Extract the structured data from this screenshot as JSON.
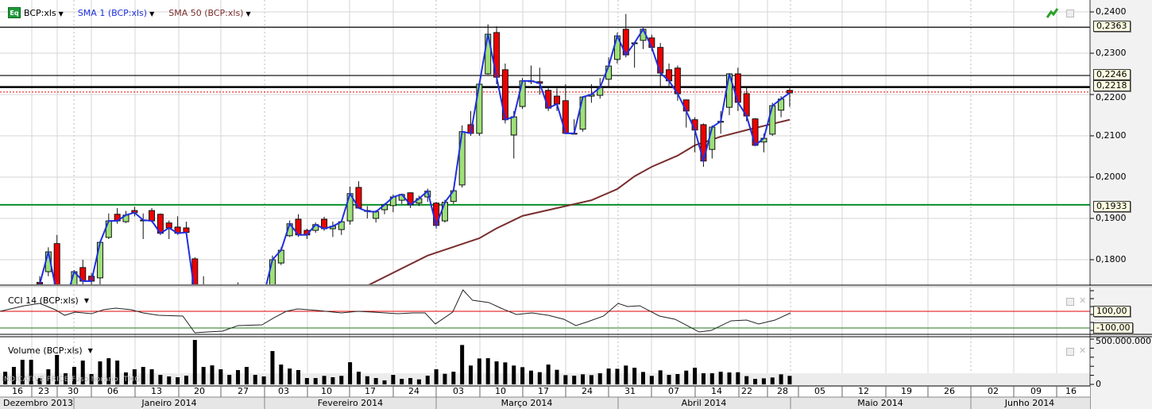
{
  "main_panel": {
    "symbol_label": "BCP:xls",
    "symbol_icon_text": "Eq",
    "sma1_label": "SMA 1 (BCP:xls)",
    "sma50_label": "SMA 50 (BCP:xls)",
    "price_ticks": [
      "0,2400",
      "0,2300",
      "0,2200",
      "0,2100",
      "0,2000",
      "0,1900",
      "0,1800"
    ],
    "price_tick_values": [
      0.24,
      0.23,
      0.22,
      0.21,
      0.2,
      0.19,
      0.18
    ],
    "price_range": [
      0.1737,
      0.2429
    ],
    "levels": [
      {
        "label": "0,2363",
        "value": 0.2363,
        "color": "#000000"
      },
      {
        "label": "0,2246",
        "value": 0.2246,
        "color": "#000000"
      },
      {
        "label": "0,2218",
        "value": 0.2218,
        "color": "#000000"
      },
      {
        "label": "0,1933",
        "value": 0.1933,
        "color": "#0a8f2a"
      }
    ],
    "last_price_line": 0.2206
  },
  "cci_panel": {
    "label": "CCI 14 (BCP:xls)",
    "upper_label": "100,00",
    "lower_label": "-100,00",
    "upper": 100,
    "lower": -100
  },
  "volume_panel": {
    "label": "Volume (BCP:xls)",
    "top_label": "500.000.000",
    "zero_label": "0",
    "max": 500
  },
  "watermark": "INDICATIVE PRICE   Fuso horário: TMG",
  "time_axis": {
    "weeks": [
      "16",
      "23",
      "30",
      "06",
      "13",
      "20",
      "27",
      "03",
      "10",
      "17",
      "24",
      "03",
      "10",
      "17",
      "24",
      "31",
      "07",
      "14",
      "22",
      "28",
      "05",
      "12",
      "19",
      "26",
      "02",
      "09",
      "16"
    ],
    "months": [
      "Dezembro 2013",
      "Janeiro 2014",
      "Fevereiro 2014",
      "Março 2014",
      "Abril 2014",
      "Maio 2014",
      "Junho 2014"
    ]
  },
  "colors": {
    "up": "#9de07a",
    "down": "#ee0000",
    "sma1": "#1f2fe0",
    "sma50": "#7a2e2e",
    "cci": "#222222",
    "cci_upper": "#e00000",
    "cci_lower": "#1b7a1b",
    "level_green": "#0a8f2a"
  },
  "chart_data": {
    "type": "candlestick",
    "title": "BCP:xls",
    "candles_ohlc": [
      [
        0.1745,
        0.176,
        0.173,
        0.1741
      ],
      [
        0.1771,
        0.183,
        0.176,
        0.1819
      ],
      [
        0.1839,
        0.186,
        0.17,
        0.1717
      ],
      [
        0.1715,
        0.1725,
        0.169,
        0.17
      ],
      [
        0.172,
        0.1775,
        0.1715,
        0.1771
      ],
      [
        0.1781,
        0.18,
        0.174,
        0.1748
      ],
      [
        0.176,
        0.1768,
        0.174,
        0.1748
      ],
      [
        0.1756,
        0.1845,
        0.174,
        0.1842
      ],
      [
        0.1854,
        0.1912,
        0.185,
        0.1894
      ],
      [
        0.191,
        0.1925,
        0.1887,
        0.1894
      ],
      [
        0.1892,
        0.1918,
        0.1889,
        0.1908
      ],
      [
        0.1919,
        0.1928,
        0.1905,
        0.1914
      ],
      [
        0.1896,
        0.1912,
        0.185,
        0.1896
      ],
      [
        0.1919,
        0.1925,
        0.189,
        0.1894
      ],
      [
        0.191,
        0.1912,
        0.186,
        0.1864
      ],
      [
        0.1889,
        0.1895,
        0.185,
        0.1877
      ],
      [
        0.1879,
        0.1905,
        0.186,
        0.1864
      ],
      [
        0.1877,
        0.1892,
        0.1862,
        0.1866
      ],
      [
        0.1802,
        0.1806,
        0.17,
        0.1717
      ],
      [
        0.171,
        0.176,
        0.169,
        0.17
      ],
      [
        0.17,
        0.1715,
        0.169,
        0.1705
      ],
      [
        0.1705,
        0.1712,
        0.1695,
        0.17
      ],
      [
        0.17,
        0.172,
        0.169,
        0.171
      ],
      [
        0.171,
        0.1745,
        0.17,
        0.1712
      ],
      [
        0.1712,
        0.1725,
        0.17,
        0.1705
      ],
      [
        0.1705,
        0.172,
        0.1695,
        0.171
      ],
      [
        0.171,
        0.173,
        0.17,
        0.1715
      ],
      [
        0.172,
        0.181,
        0.1715,
        0.18
      ],
      [
        0.1792,
        0.183,
        0.1787,
        0.1823
      ],
      [
        0.1858,
        0.1895,
        0.1855,
        0.1887
      ],
      [
        0.1898,
        0.191,
        0.1855,
        0.186
      ],
      [
        0.1871,
        0.1875,
        0.185,
        0.186
      ],
      [
        0.1871,
        0.189,
        0.1865,
        0.1885
      ],
      [
        0.1898,
        0.1904,
        0.187,
        0.1875
      ],
      [
        0.1875,
        0.1892,
        0.1855,
        0.1881
      ],
      [
        0.1873,
        0.1896,
        0.186,
        0.1892
      ],
      [
        0.1894,
        0.1977,
        0.1885,
        0.196
      ],
      [
        0.1975,
        0.199,
        0.1925,
        0.1925
      ],
      [
        0.1919,
        0.193,
        0.19,
        0.1917
      ],
      [
        0.19,
        0.192,
        0.189,
        0.1916
      ],
      [
        0.1921,
        0.1937,
        0.191,
        0.1933
      ],
      [
        0.1931,
        0.1958,
        0.1915,
        0.1952
      ],
      [
        0.1944,
        0.196,
        0.1935,
        0.1958
      ],
      [
        0.1962,
        0.1963,
        0.1925,
        0.1933
      ],
      [
        0.1937,
        0.1955,
        0.193,
        0.1948
      ],
      [
        0.1952,
        0.1972,
        0.194,
        0.1966
      ],
      [
        0.1937,
        0.194,
        0.1875,
        0.1883
      ],
      [
        0.1894,
        0.1945,
        0.189,
        0.1939
      ],
      [
        0.1941,
        0.197,
        0.1935,
        0.1967
      ],
      [
        0.1981,
        0.2125,
        0.1975,
        0.211
      ],
      [
        0.2127,
        0.216,
        0.21,
        0.2106
      ],
      [
        0.2106,
        0.223,
        0.21,
        0.2225
      ],
      [
        0.225,
        0.237,
        0.2248,
        0.2346
      ],
      [
        0.235,
        0.2365,
        0.2225,
        0.2242
      ],
      [
        0.226,
        0.2275,
        0.213,
        0.2139
      ],
      [
        0.2102,
        0.216,
        0.2045,
        0.2146
      ],
      [
        0.2171,
        0.224,
        0.2165,
        0.2233
      ],
      [
        0.2231,
        0.227,
        0.2225,
        0.2233
      ],
      [
        0.2231,
        0.2265,
        0.22,
        0.2227
      ],
      [
        0.221,
        0.2215,
        0.216,
        0.2167
      ],
      [
        0.2196,
        0.2215,
        0.216,
        0.2177
      ],
      [
        0.2185,
        0.2225,
        0.2105,
        0.2106
      ],
      [
        0.2106,
        0.214,
        0.2105,
        0.2106
      ],
      [
        0.2116,
        0.2196,
        0.211,
        0.2194
      ],
      [
        0.2196,
        0.2225,
        0.218,
        0.22
      ],
      [
        0.2198,
        0.224,
        0.219,
        0.2217
      ],
      [
        0.2237,
        0.229,
        0.2217,
        0.2269
      ],
      [
        0.2285,
        0.235,
        0.2275,
        0.2342
      ],
      [
        0.2358,
        0.2395,
        0.229,
        0.2296
      ],
      [
        0.2325,
        0.2325,
        0.2265,
        0.2325
      ],
      [
        0.2331,
        0.2362,
        0.231,
        0.2358
      ],
      [
        0.2337,
        0.2345,
        0.2305,
        0.2314
      ],
      [
        0.2314,
        0.2325,
        0.2218,
        0.2252
      ],
      [
        0.226,
        0.2275,
        0.2218,
        0.2233
      ],
      [
        0.2264,
        0.227,
        0.2185,
        0.2202
      ],
      [
        0.2187,
        0.2188,
        0.212,
        0.216
      ],
      [
        0.2139,
        0.2145,
        0.206,
        0.2114
      ],
      [
        0.2127,
        0.213,
        0.2025,
        0.2039
      ],
      [
        0.2067,
        0.2125,
        0.2045,
        0.2121
      ],
      [
        0.2135,
        0.216,
        0.2105,
        0.2135
      ],
      [
        0.2169,
        0.2252,
        0.215,
        0.225
      ],
      [
        0.225,
        0.2265,
        0.216,
        0.2181
      ],
      [
        0.2202,
        0.222,
        0.2135,
        0.2148
      ],
      [
        0.2141,
        0.2143,
        0.2077,
        0.2077
      ],
      [
        0.2085,
        0.2105,
        0.206,
        0.2094
      ],
      [
        0.2104,
        0.218,
        0.21,
        0.2173
      ],
      [
        0.2162,
        0.2196,
        0.2145,
        0.2189
      ],
      [
        0.221,
        0.2215,
        0.217,
        0.2204
      ]
    ],
    "sma50_points": [
      [
        38,
        0.1737
      ],
      [
        45,
        0.181
      ],
      [
        51,
        0.1852
      ],
      [
        53,
        0.1876
      ],
      [
        56,
        0.1906
      ],
      [
        60,
        0.1925
      ],
      [
        64,
        0.1944
      ],
      [
        67,
        0.1971
      ],
      [
        69,
        0.2002
      ],
      [
        71,
        0.2025
      ],
      [
        74,
        0.2052
      ],
      [
        76,
        0.2077
      ],
      [
        79,
        0.2098
      ],
      [
        82,
        0.2114
      ],
      [
        85,
        0.2129
      ],
      [
        87,
        0.2139
      ]
    ],
    "cci_points": [
      [
        -4.6,
        100
      ],
      [
        -1.8,
        167
      ],
      [
        0,
        195
      ],
      [
        1.8,
        119
      ],
      [
        2.9,
        52
      ],
      [
        4.1,
        90
      ],
      [
        6,
        71
      ],
      [
        7.4,
        119
      ],
      [
        8.8,
        138
      ],
      [
        10.6,
        119
      ],
      [
        12,
        81
      ],
      [
        13.8,
        52
      ],
      [
        16.6,
        43
      ],
      [
        18,
        -157
      ],
      [
        19.4,
        -148
      ],
      [
        21.2,
        -138
      ],
      [
        23,
        -71
      ],
      [
        25.8,
        -62
      ],
      [
        27.2,
        24
      ],
      [
        28.6,
        100
      ],
      [
        29.9,
        129
      ],
      [
        32.3,
        110
      ],
      [
        35,
        81
      ],
      [
        36.9,
        100
      ],
      [
        38.7,
        90
      ],
      [
        41.5,
        71
      ],
      [
        43.3,
        81
      ],
      [
        44.7,
        81
      ],
      [
        45.9,
        -52
      ],
      [
        47.9,
        90
      ],
      [
        49.1,
        357
      ],
      [
        50.2,
        233
      ],
      [
        52.1,
        205
      ],
      [
        53.5,
        138
      ],
      [
        55.3,
        62
      ],
      [
        57.1,
        81
      ],
      [
        59,
        52
      ],
      [
        60.8,
        5
      ],
      [
        62.2,
        -71
      ],
      [
        63.6,
        -24
      ],
      [
        65.4,
        43
      ],
      [
        67.1,
        195
      ],
      [
        68.2,
        157
      ],
      [
        69.6,
        167
      ],
      [
        71.9,
        43
      ],
      [
        73.7,
        5
      ],
      [
        75.1,
        -71
      ],
      [
        76.5,
        -148
      ],
      [
        77.9,
        -129
      ],
      [
        80.2,
        -14
      ],
      [
        82,
        -5
      ],
      [
        83.4,
        -52
      ],
      [
        85.3,
        -5
      ],
      [
        87.1,
        81
      ]
    ],
    "volume_start_index": -4,
    "volume_millions": [
      140,
      193,
      272,
      272,
      70,
      167,
      325,
      123,
      193,
      263,
      114,
      254,
      289,
      263,
      132,
      167,
      193,
      167,
      105,
      88,
      79,
      96,
      491,
      193,
      210,
      167,
      105,
      158,
      193,
      105,
      88,
      368,
      219,
      175,
      158,
      70,
      70,
      94,
      79,
      94,
      245,
      140,
      90,
      70,
      44,
      105,
      61,
      70,
      55,
      96,
      167,
      117,
      140,
      435,
      208,
      286,
      289,
      254,
      243,
      208,
      190,
      152,
      135,
      219,
      161,
      102,
      96,
      111,
      102,
      123,
      175,
      172,
      208,
      184,
      137,
      94,
      155,
      105,
      114,
      152,
      184,
      123,
      123,
      140,
      132,
      134,
      91,
      61,
      67,
      76,
      111,
      94
    ]
  }
}
